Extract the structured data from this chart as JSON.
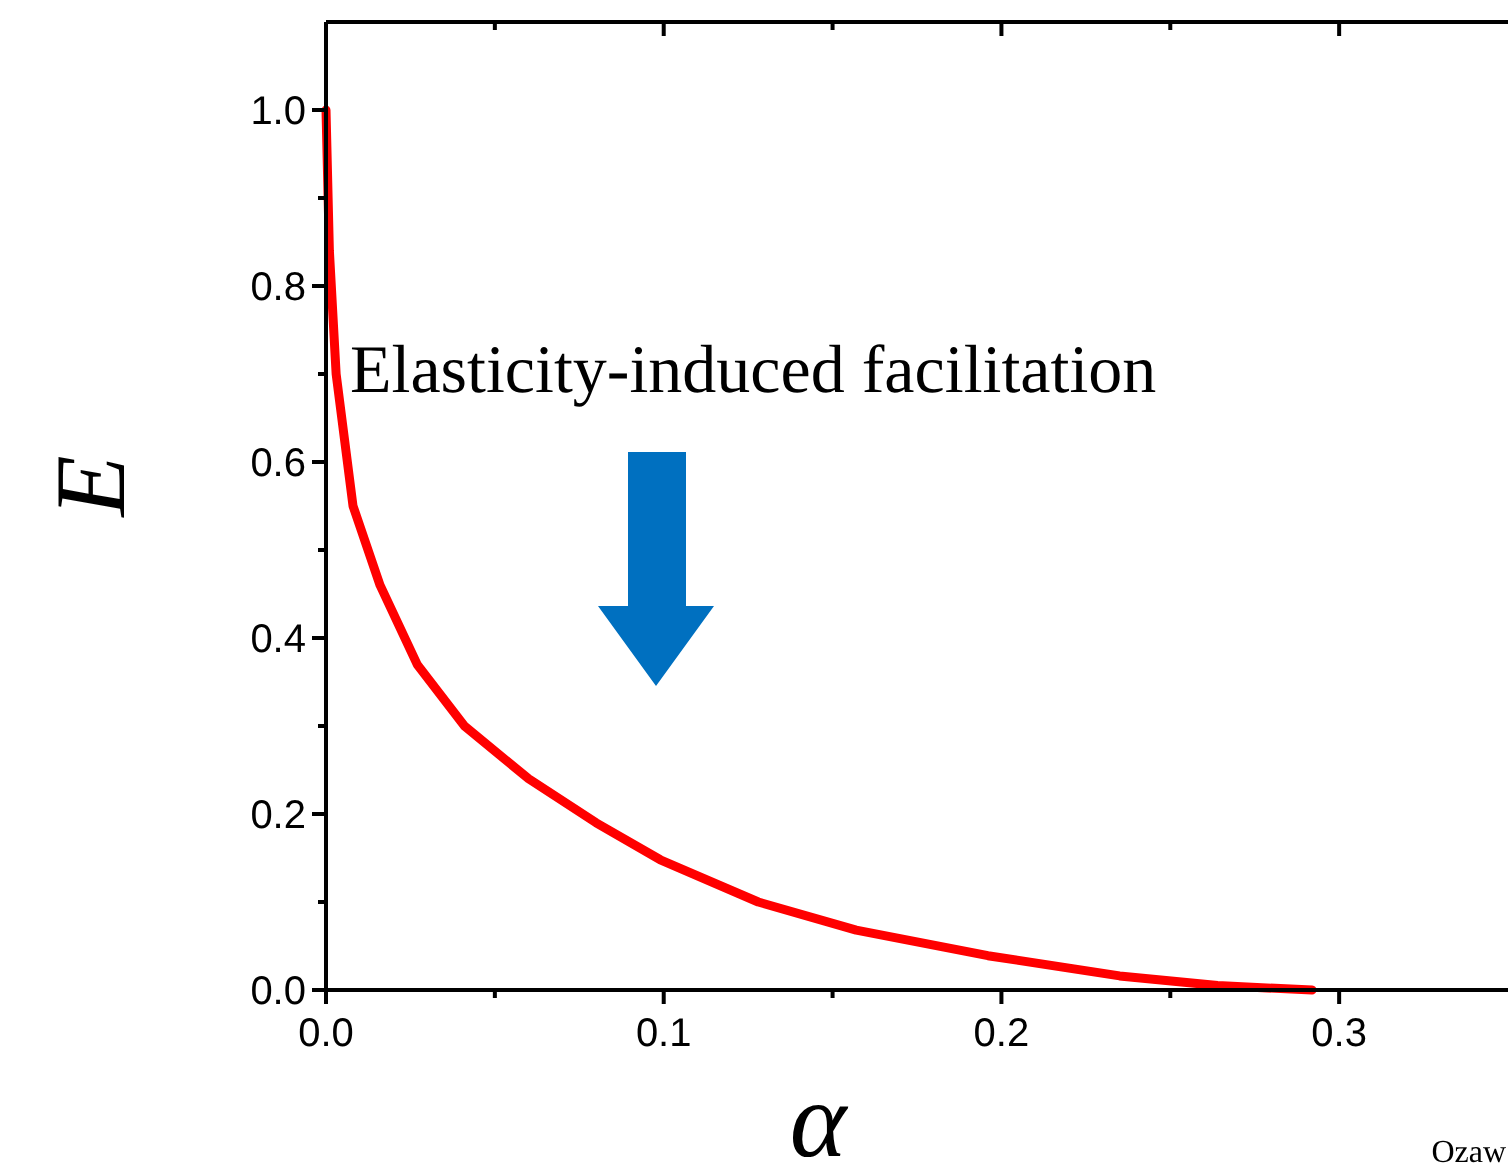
{
  "chart_data": {
    "type": "line",
    "xlabel": "α",
    "ylabel": "E",
    "x": [
      0,
      0.001,
      0.003,
      0.008,
      0.016,
      0.027,
      0.041,
      0.06,
      0.08,
      0.099,
      0.128,
      0.157,
      0.196,
      0.235,
      0.264,
      0.292
    ],
    "series": [
      {
        "color": "#ff0000",
        "values": [
          1.0,
          0.84,
          0.7,
          0.55,
          0.46,
          0.37,
          0.3,
          0.24,
          0.19,
          0.148,
          0.1,
          0.068,
          0.039,
          0.016,
          0.005,
          0
        ]
      }
    ],
    "xlim": [
      0,
      0.35
    ],
    "ylim": [
      0,
      1.1
    ],
    "xticks": [
      {
        "value": 0,
        "label": "0.0"
      },
      {
        "value": 0.05,
        "label": null
      },
      {
        "value": 0.1,
        "label": "0.1"
      },
      {
        "value": 0.15,
        "label": null
      },
      {
        "value": 0.2,
        "label": "0.2"
      },
      {
        "value": 0.25,
        "label": null
      },
      {
        "value": 0.3,
        "label": "0.3"
      }
    ],
    "yticks": [
      {
        "value": 0,
        "label": "0.0"
      },
      {
        "value": 0.1,
        "label": null
      },
      {
        "value": 0.2,
        "label": "0.2"
      },
      {
        "value": 0.3,
        "label": null
      },
      {
        "value": 0.4,
        "label": "0.4"
      },
      {
        "value": 0.5,
        "label": null
      },
      {
        "value": 0.6,
        "label": "0.6"
      },
      {
        "value": 0.7,
        "label": null
      },
      {
        "value": 0.8,
        "label": "0.8"
      },
      {
        "value": 0.9,
        "label": null
      },
      {
        "value": 1,
        "label": "1.0"
      }
    ],
    "annotations": [
      "Elasticity-induced facilitation",
      "Ozaw"
    ],
    "grid": false,
    "marker": "none",
    "line_style": "solid"
  }
}
